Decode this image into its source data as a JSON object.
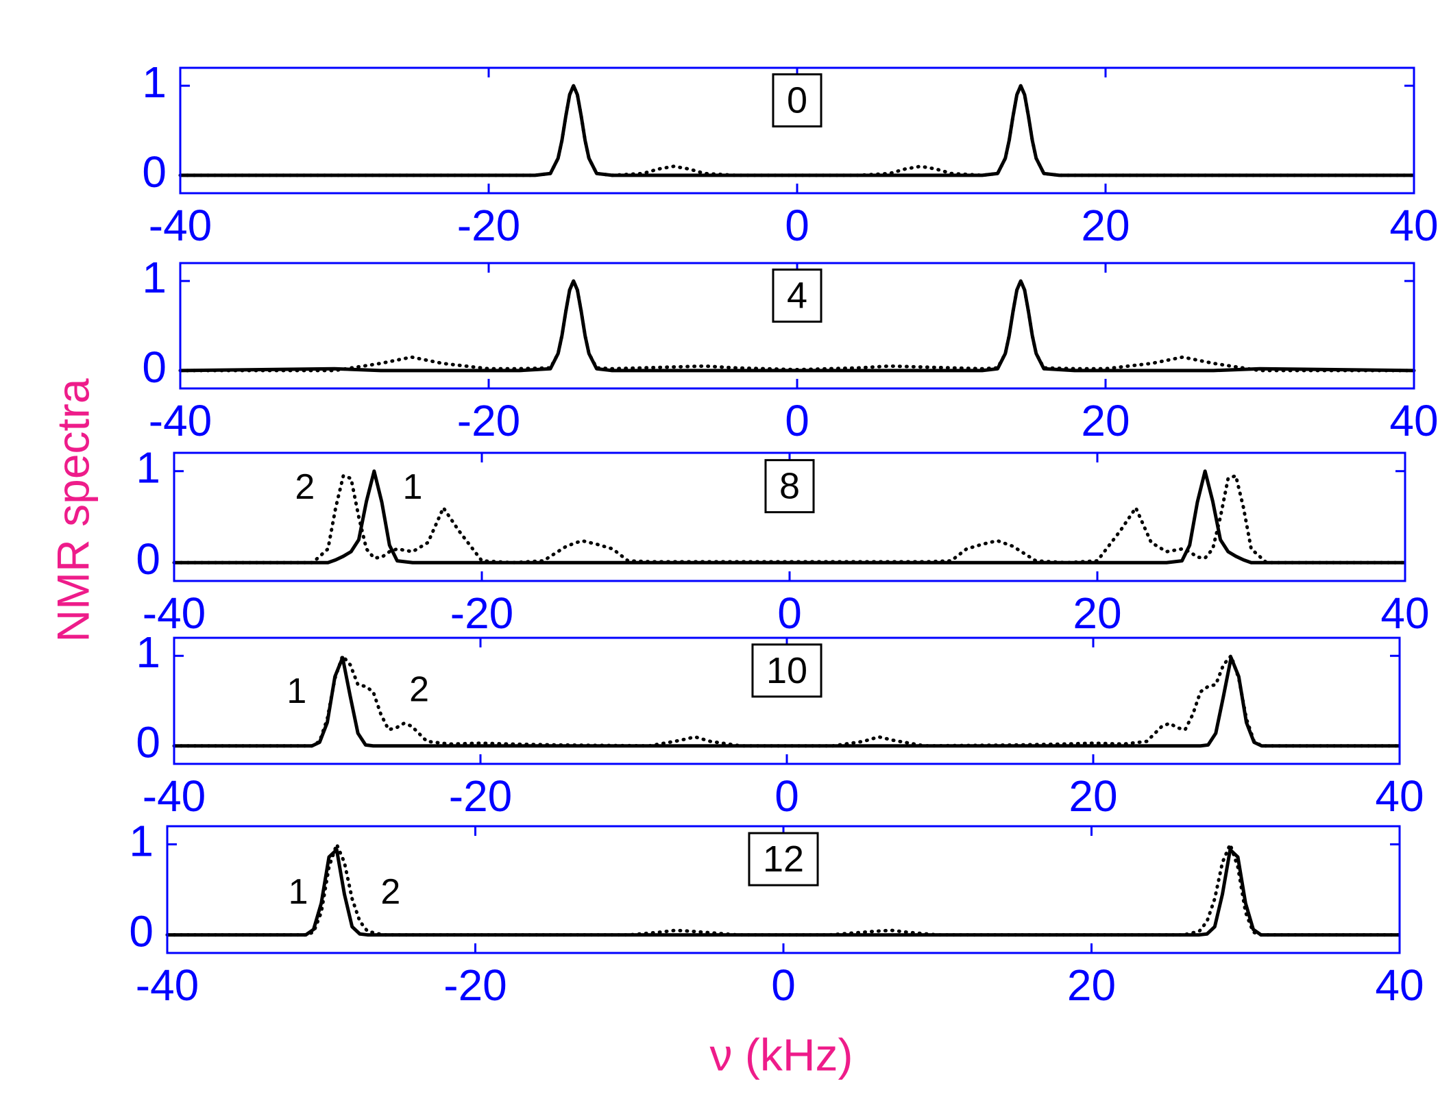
{
  "ylabel": "NMR spectra",
  "xlabel": "ν (kHz)",
  "chart_data": [
    {
      "type": "line",
      "label": "0",
      "xlim": [
        -40,
        40
      ],
      "xticks": [
        -40,
        -20,
        0,
        20,
        40
      ],
      "ylim": [
        -0.2,
        1.2
      ],
      "yticks": [
        0,
        1
      ],
      "x": [
        -40,
        -30,
        -20,
        -17,
        -16,
        -15.5,
        -15.25,
        -15,
        -14.75,
        -14.5,
        -14.25,
        -14,
        -13.75,
        -13.5,
        -13,
        -12,
        -10,
        -9,
        -8,
        -7,
        -6,
        -4,
        0,
        4,
        6,
        7,
        8,
        9,
        10,
        12,
        13,
        13.5,
        13.75,
        14,
        14.25,
        14.5,
        14.75,
        15,
        15.25,
        15.5,
        16,
        17,
        20,
        30,
        40
      ],
      "series": [
        {
          "color": "#000000",
          "linestyle": "solid",
          "values": [
            0,
            0,
            0,
            0,
            0.02,
            0.19,
            0.39,
            0.66,
            0.9,
            1,
            0.9,
            0.66,
            0.39,
            0.19,
            0.02,
            0,
            0,
            0,
            0,
            0,
            0,
            0,
            0,
            0,
            0,
            0,
            0,
            0,
            0,
            0,
            0.02,
            0.19,
            0.39,
            0.66,
            0.9,
            1,
            0.9,
            0.66,
            0.39,
            0.19,
            0.02,
            0,
            0,
            0,
            0
          ]
        },
        {
          "color": "#000000",
          "linestyle": "dotted",
          "values": [
            0,
            0,
            0,
            0,
            0.02,
            0.19,
            0.39,
            0.66,
            0.9,
            1,
            0.9,
            0.66,
            0.39,
            0.19,
            0.02,
            0,
            0.02,
            0.07,
            0.1,
            0.07,
            0.02,
            0,
            0,
            0,
            0.02,
            0.07,
            0.1,
            0.07,
            0.02,
            0,
            0.02,
            0.19,
            0.39,
            0.66,
            0.9,
            1,
            0.9,
            0.66,
            0.39,
            0.19,
            0.02,
            0,
            0,
            0,
            0
          ]
        }
      ]
    },
    {
      "type": "line",
      "label": "4",
      "xlim": [
        -40,
        40
      ],
      "xticks": [
        -40,
        -20,
        0,
        20,
        40
      ],
      "ylim": [
        -0.2,
        1.2
      ],
      "yticks": [
        0,
        1
      ],
      "x": [
        -40,
        -30,
        -27,
        -25,
        -23,
        -20,
        -18,
        -16,
        -15.5,
        -15.25,
        -15,
        -14.75,
        -14.5,
        -14.25,
        -14,
        -13.75,
        -13.5,
        -13,
        -12,
        -10,
        -6,
        -4,
        0,
        4,
        6,
        10,
        12,
        13,
        13.5,
        13.75,
        14,
        14.25,
        14.5,
        14.75,
        15,
        15.25,
        15.5,
        16,
        18,
        20,
        23,
        25,
        27,
        30,
        40
      ],
      "series": [
        {
          "color": "#000000",
          "linestyle": "solid",
          "values": [
            0,
            0.02,
            0,
            0,
            0,
            0,
            0,
            0.02,
            0.19,
            0.39,
            0.66,
            0.9,
            1,
            0.9,
            0.66,
            0.39,
            0.19,
            0.02,
            0,
            0,
            0,
            0,
            0,
            0,
            0,
            0,
            0,
            0.02,
            0.19,
            0.39,
            0.66,
            0.9,
            1,
            0.9,
            0.66,
            0.39,
            0.19,
            0.02,
            0,
            0,
            0,
            0,
            0,
            0.02,
            0
          ]
        },
        {
          "color": "#000000",
          "linestyle": "dotted",
          "values": [
            0,
            0,
            0.08,
            0.15,
            0.08,
            0.02,
            0.02,
            0.03,
            0.19,
            0.39,
            0.66,
            0.9,
            1,
            0.9,
            0.66,
            0.39,
            0.19,
            0.03,
            0.02,
            0.03,
            0.05,
            0.03,
            0.01,
            0.03,
            0.05,
            0.03,
            0.02,
            0.03,
            0.19,
            0.39,
            0.66,
            0.9,
            1,
            0.9,
            0.66,
            0.39,
            0.19,
            0.03,
            0.02,
            0.02,
            0.08,
            0.15,
            0.08,
            0,
            0
          ]
        }
      ]
    },
    {
      "type": "line",
      "label": "8",
      "notes": [
        "2",
        "1"
      ],
      "xlim": [
        -40,
        40
      ],
      "xticks": [
        -40,
        -20,
        0,
        20,
        40
      ],
      "ylim": [
        -0.2,
        1.2
      ],
      "yticks": [
        0,
        1
      ],
      "x": [
        -40,
        -35,
        -31,
        -30,
        -29.5,
        -29,
        -28.5,
        -28,
        -27.5,
        -27,
        -26.5,
        -26,
        -25.5,
        -24.5,
        -23.5,
        -22.5,
        -21.5,
        -20,
        -18,
        -16,
        -14.5,
        -13.5,
        -12.5,
        -11.5,
        -10.5,
        -9,
        -6,
        -3,
        0,
        3,
        6,
        9,
        10.5,
        11.5,
        12.5,
        13.5,
        14.5,
        16,
        18,
        20,
        21.5,
        22.5,
        23.5,
        24.5,
        25.5,
        26,
        26.5,
        27,
        27.5,
        28,
        28.5,
        29,
        29.5,
        30,
        31,
        35,
        40
      ],
      "series": [
        {
          "color": "#000000",
          "linestyle": "solid",
          "values": [
            0,
            0,
            0,
            0,
            0.03,
            0.07,
            0.12,
            0.25,
            0.67,
            1,
            0.66,
            0.19,
            0.02,
            0,
            0,
            0,
            0,
            0,
            0,
            0,
            0,
            0,
            0,
            0,
            0,
            0,
            0,
            0,
            0,
            0,
            0,
            0,
            0,
            0,
            0,
            0,
            0,
            0,
            0,
            0,
            0,
            0,
            0,
            0,
            0.02,
            0.19,
            0.66,
            1,
            0.67,
            0.25,
            0.12,
            0.07,
            0.03,
            0,
            0,
            0,
            0
          ]
        },
        {
          "color": "#000000",
          "linestyle": "dotted",
          "values": [
            0,
            0,
            0,
            0.15,
            0.6,
            0.95,
            0.92,
            0.5,
            0.15,
            0.05,
            0.06,
            0.12,
            0.15,
            0.12,
            0.22,
            0.6,
            0.35,
            0.02,
            0,
            0.02,
            0.18,
            0.24,
            0.2,
            0.15,
            0.02,
            0.01,
            0.01,
            0.01,
            0.01,
            0.01,
            0.01,
            0.01,
            0.02,
            0.15,
            0.2,
            0.24,
            0.18,
            0.02,
            0,
            0.02,
            0.35,
            0.6,
            0.22,
            0.12,
            0.15,
            0.12,
            0.06,
            0.05,
            0.15,
            0.5,
            0.92,
            0.95,
            0.6,
            0.15,
            0,
            0,
            0
          ]
        }
      ]
    },
    {
      "type": "line",
      "label": "10",
      "notes": [
        "1",
        "2"
      ],
      "xlim": [
        -40,
        40
      ],
      "xticks": [
        -40,
        -20,
        0,
        20,
        40
      ],
      "ylim": [
        -0.2,
        1.2
      ],
      "yticks": [
        0,
        1
      ],
      "x": [
        -40,
        -35,
        -31,
        -30.5,
        -30,
        -29.5,
        -29,
        -28.5,
        -28,
        -27.5,
        -27,
        -26.5,
        -26,
        -25.5,
        -25,
        -24.5,
        -23.5,
        -22,
        -20,
        -18,
        -15,
        -9,
        -7,
        -6,
        -5,
        -3,
        0,
        3,
        5,
        6,
        7,
        9,
        15,
        18,
        20,
        22,
        23.5,
        24.5,
        25,
        25.5,
        26,
        26.5,
        27,
        27.5,
        28,
        28.5,
        29,
        29.5,
        30,
        30.5,
        31,
        35,
        40
      ],
      "series": [
        {
          "color": "#000000",
          "linestyle": "solid",
          "values": [
            0,
            0,
            0,
            0.04,
            0.26,
            0.77,
            0.98,
            0.55,
            0.14,
            0.01,
            0,
            0,
            0,
            0,
            0,
            0,
            0,
            0,
            0,
            0,
            0,
            0,
            0,
            0,
            0,
            0,
            0,
            0,
            0,
            0,
            0,
            0,
            0,
            0,
            0,
            0,
            0,
            0,
            0,
            0,
            0,
            0,
            0,
            0.01,
            0.14,
            0.55,
            0.98,
            0.77,
            0.26,
            0.04,
            0,
            0,
            0
          ]
        },
        {
          "color": "#000000",
          "linestyle": "dotted",
          "values": [
            0,
            0,
            0,
            0.05,
            0.3,
            0.75,
            1,
            0.9,
            0.68,
            0.66,
            0.6,
            0.35,
            0.18,
            0.2,
            0.25,
            0.22,
            0.05,
            0.02,
            0.03,
            0.02,
            0.01,
            0,
            0.06,
            0.1,
            0.05,
            0,
            0,
            0,
            0.05,
            0.1,
            0.06,
            0,
            0.01,
            0.02,
            0.03,
            0.02,
            0.05,
            0.22,
            0.25,
            0.2,
            0.18,
            0.35,
            0.6,
            0.66,
            0.68,
            0.9,
            1,
            0.75,
            0.3,
            0.05,
            0,
            0,
            0
          ]
        }
      ]
    },
    {
      "type": "line",
      "label": "12",
      "notes": [
        "1",
        "2"
      ],
      "xlim": [
        -40,
        40
      ],
      "xticks": [
        -40,
        -20,
        0,
        20,
        40
      ],
      "ylim": [
        -0.2,
        1.2
      ],
      "yticks": [
        0,
        1
      ],
      "x": [
        -40,
        -35,
        -31,
        -30.5,
        -30,
        -29.5,
        -29,
        -28.5,
        -28,
        -27.5,
        -27,
        -26,
        -20,
        -10,
        -8,
        -7,
        -6,
        -3,
        0,
        3,
        6,
        7,
        8,
        10,
        20,
        26,
        27,
        27.5,
        28,
        28.5,
        29,
        29.5,
        30,
        30.5,
        31,
        35,
        40
      ],
      "series": [
        {
          "color": "#000000",
          "linestyle": "solid",
          "values": [
            0,
            0,
            0,
            0.06,
            0.35,
            0.86,
            0.94,
            0.45,
            0.09,
            0.01,
            0,
            0,
            0,
            0,
            0,
            0,
            0,
            0,
            0,
            0,
            0,
            0,
            0,
            0,
            0,
            0,
            0,
            0.01,
            0.09,
            0.45,
            0.94,
            0.86,
            0.35,
            0.06,
            0,
            0,
            0
          ]
        },
        {
          "color": "#000000",
          "linestyle": "dotted",
          "values": [
            0,
            0,
            0,
            0.03,
            0.25,
            0.75,
            1,
            0.8,
            0.4,
            0.15,
            0.04,
            0,
            0,
            0,
            0.03,
            0.05,
            0.04,
            0,
            0,
            0,
            0.04,
            0.05,
            0.03,
            0,
            0,
            0,
            0.04,
            0.15,
            0.4,
            0.8,
            1,
            0.75,
            0.25,
            0.03,
            0,
            0,
            0
          ]
        }
      ]
    }
  ]
}
